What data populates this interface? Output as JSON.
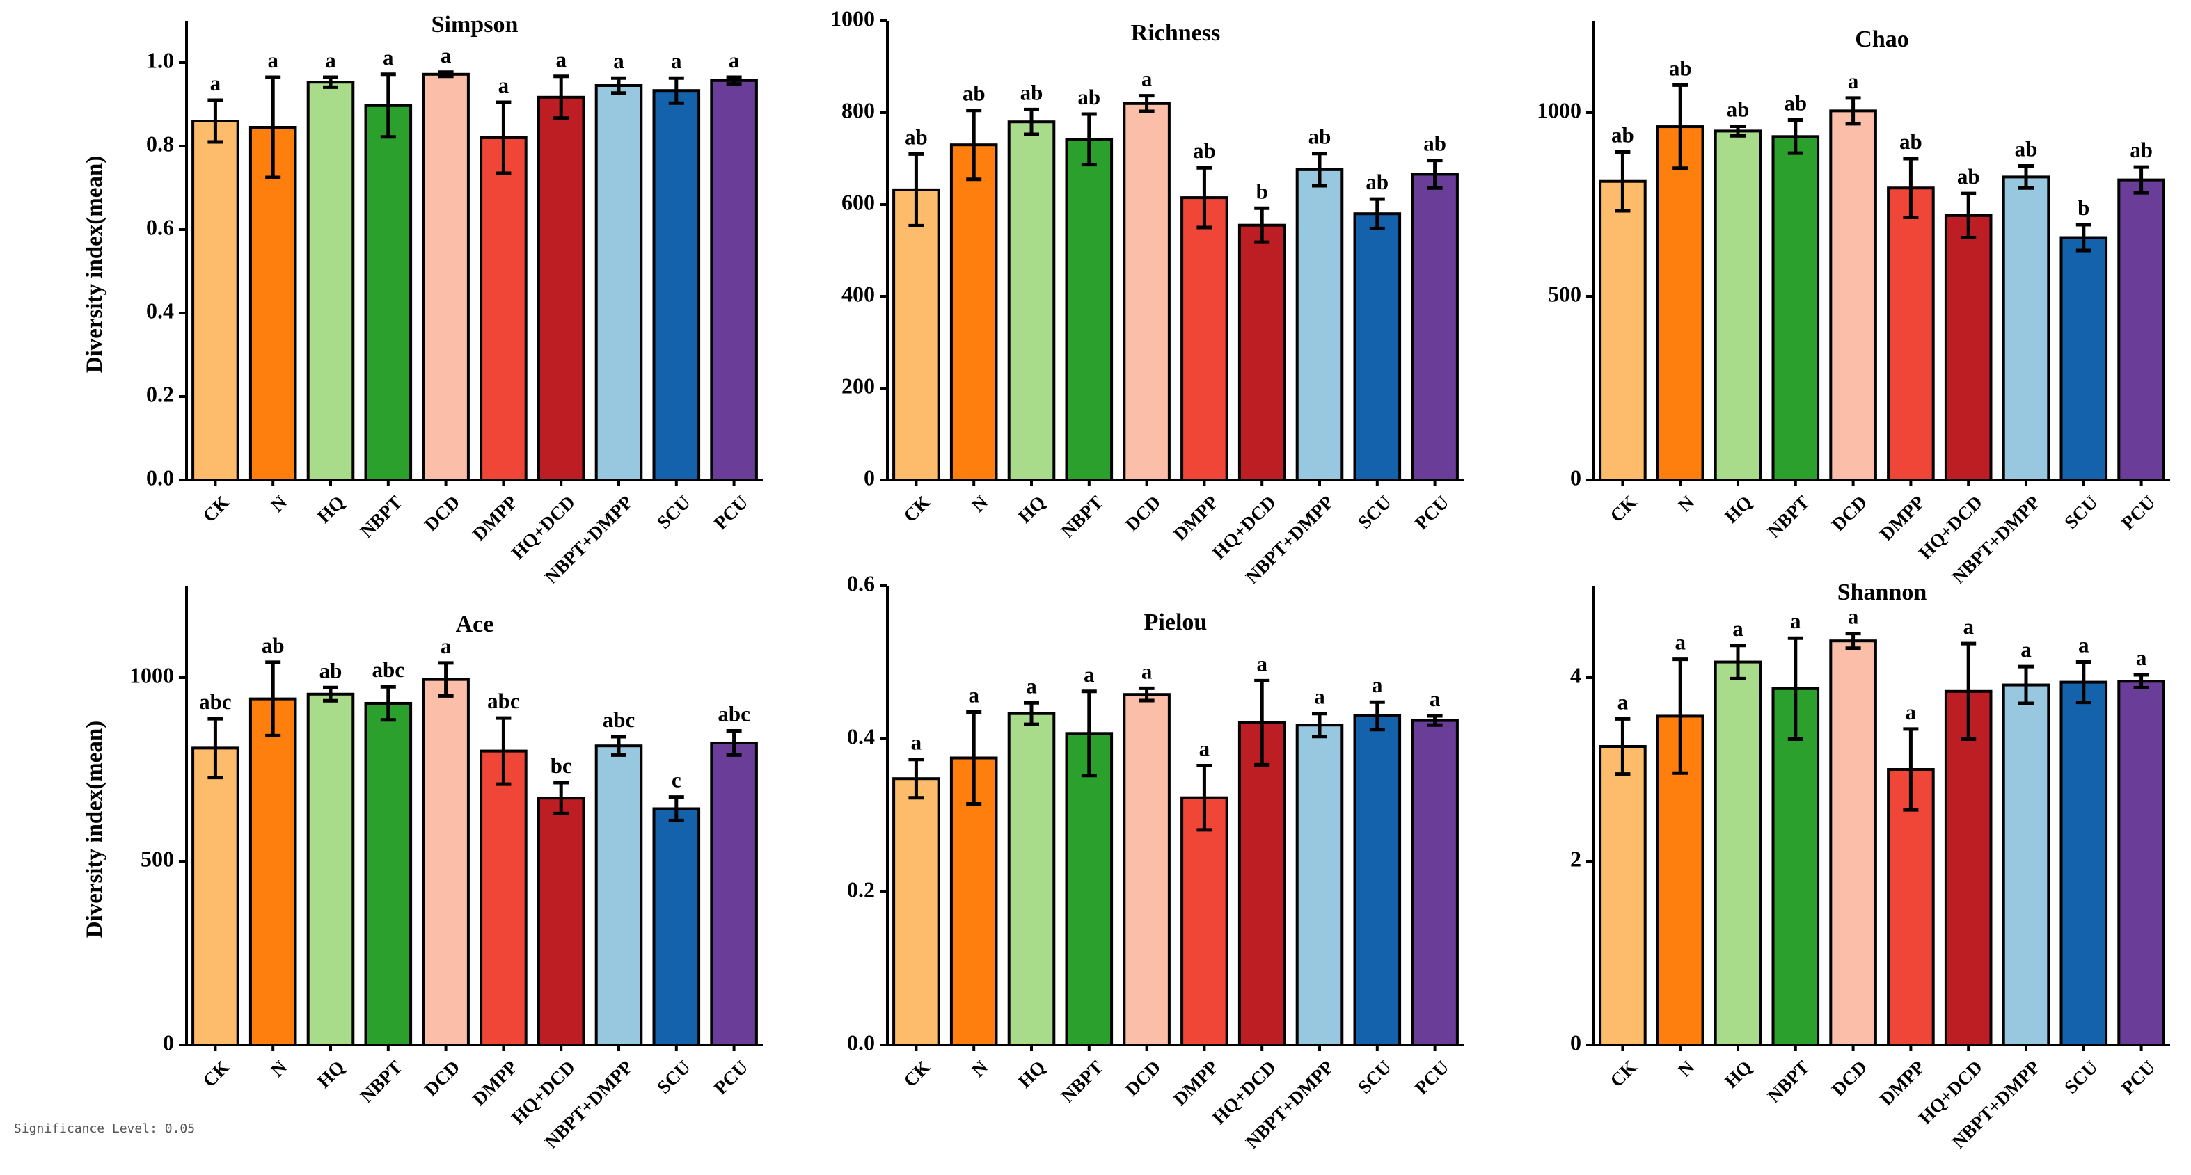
{
  "footnote": "Significance Level: 0.05",
  "categories": [
    "CK",
    "N",
    "HQ",
    "NBPT",
    "DCD",
    "DMPP",
    "HQ+DCD",
    "NBPT+DMPP",
    "SCU",
    "PCU"
  ],
  "colors": [
    "#FDBB6C",
    "#FF7F0E",
    "#A8DB8A",
    "#2CA02C",
    "#FBBFA9",
    "#EF4638",
    "#BD1E23",
    "#98C8E0",
    "#1462AC",
    "#6A3E98"
  ],
  "chart_data": [
    {
      "type": "bar",
      "title": "Simpson",
      "ylabel": "Diversity index(mean)",
      "ylim": [
        0,
        1.1
      ],
      "ytick_step": 0.2,
      "tick_decimals": 1,
      "values": [
        0.86,
        0.845,
        0.953,
        0.897,
        0.972,
        0.82,
        0.917,
        0.945,
        0.933,
        0.957
      ],
      "errors": [
        0.05,
        0.12,
        0.012,
        0.075,
        0.005,
        0.085,
        0.05,
        0.018,
        0.03,
        0.008
      ],
      "letters": [
        "a",
        "a",
        "a",
        "a",
        "a",
        "a",
        "a",
        "a",
        "a",
        "a"
      ]
    },
    {
      "type": "bar",
      "title": "Richness",
      "ylabel": "",
      "ylim": [
        0,
        1000
      ],
      "ytick_step": 200,
      "tick_decimals": 0,
      "values": [
        632,
        730,
        780,
        742,
        820,
        615,
        555,
        676,
        580,
        666
      ],
      "errors": [
        78,
        75,
        27,
        55,
        17,
        65,
        37,
        35,
        32,
        30
      ],
      "letters": [
        "ab",
        "ab",
        "ab",
        "ab",
        "a",
        "ab",
        "b",
        "ab",
        "ab",
        "ab"
      ]
    },
    {
      "type": "bar",
      "title": "Chao",
      "ylabel": "",
      "ylim": [
        0,
        1250
      ],
      "ytick_step": 500,
      "tick_decimals": 0,
      "values": [
        813,
        962,
        950,
        935,
        1005,
        795,
        720,
        825,
        660,
        817
      ],
      "errors": [
        80,
        113,
        13,
        45,
        35,
        80,
        60,
        30,
        35,
        35
      ],
      "letters": [
        "ab",
        "ab",
        "ab",
        "ab",
        "a",
        "ab",
        "ab",
        "ab",
        "b",
        "ab"
      ]
    },
    {
      "type": "bar",
      "title": "Ace",
      "ylabel": "Diversity index(mean)",
      "ylim": [
        0,
        1250
      ],
      "ytick_step": 500,
      "tick_decimals": 0,
      "values": [
        808,
        942,
        955,
        930,
        995,
        800,
        672,
        814,
        643,
        822
      ],
      "errors": [
        80,
        100,
        18,
        45,
        45,
        90,
        42,
        25,
        32,
        33
      ],
      "letters": [
        "abc",
        "ab",
        "ab",
        "abc",
        "a",
        "abc",
        "bc",
        "abc",
        "c",
        "abc"
      ]
    },
    {
      "type": "bar",
      "title": "Pielou",
      "ylabel": "",
      "ylim": [
        0,
        0.6
      ],
      "ytick_step": 0.2,
      "tick_decimals": 1,
      "values": [
        0.348,
        0.375,
        0.433,
        0.407,
        0.458,
        0.323,
        0.421,
        0.418,
        0.43,
        0.424
      ],
      "errors": [
        0.025,
        0.06,
        0.014,
        0.055,
        0.008,
        0.042,
        0.055,
        0.015,
        0.018,
        0.006
      ],
      "letters": [
        "a",
        "a",
        "a",
        "a",
        "a",
        "a",
        "a",
        "a",
        "a",
        "a"
      ]
    },
    {
      "type": "bar",
      "title": "Shannon",
      "ylabel": "",
      "ylim": [
        0,
        5
      ],
      "ytick_step": 2,
      "tick_decimals": 0,
      "values": [
        3.25,
        3.58,
        4.17,
        3.88,
        4.4,
        3.0,
        3.85,
        3.92,
        3.95,
        3.96
      ],
      "errors": [
        0.3,
        0.62,
        0.18,
        0.55,
        0.08,
        0.44,
        0.52,
        0.2,
        0.22,
        0.07
      ],
      "letters": [
        "a",
        "a",
        "a",
        "a",
        "a",
        "a",
        "a",
        "a",
        "a",
        "a"
      ]
    }
  ]
}
